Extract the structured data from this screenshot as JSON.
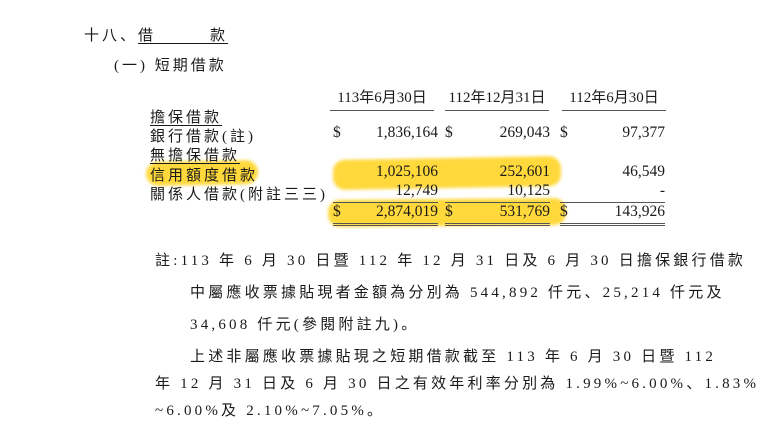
{
  "section": {
    "number": "十八、",
    "title": "借　　　款"
  },
  "subsection": {
    "number": "(一)",
    "title": "短期借款"
  },
  "table": {
    "columns": [
      "113年6月30日",
      "112年12月31日",
      "112年6月30日"
    ],
    "rows": [
      {
        "label": "擔保借款",
        "heading": true
      },
      {
        "label": "銀行借款(註)",
        "values": [
          {
            "cur": "$",
            "v": "1,836,164"
          },
          {
            "cur": "$",
            "v": "269,043"
          },
          {
            "cur": "$",
            "v": "97,377"
          }
        ]
      },
      {
        "label": "無擔保借款",
        "heading": true
      },
      {
        "label": "信用額度借款",
        "values": [
          {
            "cur": "",
            "v": "1,025,106"
          },
          {
            "cur": "",
            "v": "252,601"
          },
          {
            "cur": "",
            "v": "46,549"
          }
        ]
      },
      {
        "label": "關係人借款(附註三三)",
        "values": [
          {
            "cur": "",
            "v": "12,749"
          },
          {
            "cur": "",
            "v": "10,125"
          },
          {
            "cur": "",
            "v": "-"
          }
        ]
      },
      {
        "label": "",
        "values": [
          {
            "cur": "$",
            "v": "2,874,019"
          },
          {
            "cur": "$",
            "v": "531,769"
          },
          {
            "cur": "$",
            "v": "143,926"
          }
        ]
      }
    ]
  },
  "notes": {
    "lines": [
      "註:113 年 6 月 30 日暨 112 年 12 月 31 日及 6 月 30 日擔保銀行借款",
      "中屬應收票據貼現者金額為分別為 544,892 仟元、25,214 仟元及",
      "34,608 仟元(參閱附註九)。",
      "上述非屬應收票據貼現之短期借款截至 113 年 6 月 30 日暨 112",
      "年 12 月 31 日及 6 月 30 日之有效年利率分別為 1.99%~6.00%、1.83%",
      "~6.00%及 2.10%~7.05%。"
    ]
  },
  "highlight_color": "#ffd21a"
}
